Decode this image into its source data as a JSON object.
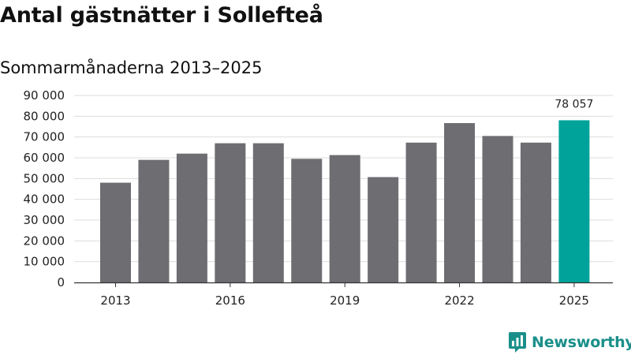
{
  "title": "Antal gästnätter i Sollefteå",
  "subtitle": "Sommarmånaderna 2013–2025",
  "brand": {
    "name": "Newsworthy",
    "icon": "newsworthy-logo-icon"
  },
  "colors": {
    "bar": "#6d6d72",
    "highlight": "#00a39a",
    "grid": "#dddddd",
    "axis": "#333333",
    "brand": "#1a8f8a"
  },
  "chart_data": {
    "type": "bar",
    "title": "Antal gästnätter i Sollefteå",
    "subtitle": "Sommarmånaderna 2013–2025",
    "xlabel": "",
    "ylabel": "",
    "categories": [
      "2013",
      "2014",
      "2015",
      "2016",
      "2017",
      "2018",
      "2019",
      "2020",
      "2021",
      "2022",
      "2023",
      "2024",
      "2025"
    ],
    "x_tick_labels": [
      "2013",
      "",
      "",
      "2016",
      "",
      "",
      "2019",
      "",
      "",
      "2022",
      "",
      "",
      "2025"
    ],
    "values": [
      48000,
      59000,
      62000,
      67000,
      67000,
      59500,
      61300,
      50700,
      67300,
      76700,
      70500,
      67300,
      78057
    ],
    "highlight_index": 12,
    "data_labels": [
      {
        "index": 12,
        "text": "78 057"
      }
    ],
    "ylim": [
      0,
      90000
    ],
    "y_ticks": [
      0,
      10000,
      20000,
      30000,
      40000,
      50000,
      60000,
      70000,
      80000,
      90000
    ],
    "y_tick_labels": [
      "0",
      "10 000",
      "20 000",
      "30 000",
      "40 000",
      "50 000",
      "60 000",
      "70 000",
      "80 000",
      "90 000"
    ],
    "grid": true,
    "legend": "none"
  }
}
